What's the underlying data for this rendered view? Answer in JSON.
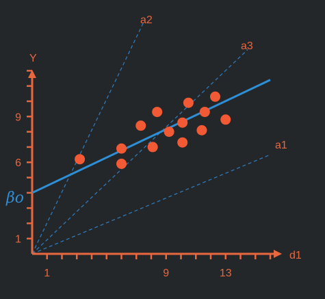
{
  "chart_data": {
    "type": "scatter",
    "xlabel": "d1",
    "ylabel": "Y",
    "x_ticks": [
      1,
      9,
      13
    ],
    "y_ticks": [
      1,
      6,
      9
    ],
    "xlim": [
      0,
      17
    ],
    "ylim": [
      0,
      13
    ],
    "intercept_label": "βo",
    "colors": {
      "points": "#f25a35",
      "axes": "#e8673f",
      "fit_line": "#2f8fd6",
      "dashed": "#2f79b8"
    },
    "points": [
      {
        "x": 3.2,
        "y": 6.2
      },
      {
        "x": 6,
        "y": 5.9
      },
      {
        "x": 6,
        "y": 6.9
      },
      {
        "x": 7.3,
        "y": 8.4
      },
      {
        "x": 8.1,
        "y": 7.0
      },
      {
        "x": 8.4,
        "y": 9.3
      },
      {
        "x": 9.2,
        "y": 8.0
      },
      {
        "x": 10.1,
        "y": 7.3
      },
      {
        "x": 10.1,
        "y": 8.6
      },
      {
        "x": 10.5,
        "y": 9.9
      },
      {
        "x": 11.4,
        "y": 8.1
      },
      {
        "x": 11.6,
        "y": 9.3
      },
      {
        "x": 12.3,
        "y": 10.3
      },
      {
        "x": 13,
        "y": 8.8
      }
    ],
    "fit_line": {
      "x": [
        0,
        16
      ],
      "y": [
        4.0,
        11.4
      ]
    },
    "dashed_lines": [
      {
        "name": "a1",
        "x": [
          0,
          16
        ],
        "y": [
          0,
          6.5
        ]
      },
      {
        "name": "a2",
        "x": [
          0,
          7.5
        ],
        "y": [
          0,
          15.2
        ]
      },
      {
        "name": "a3",
        "x": [
          0,
          14.5
        ],
        "y": [
          0,
          13.4
        ]
      }
    ]
  }
}
